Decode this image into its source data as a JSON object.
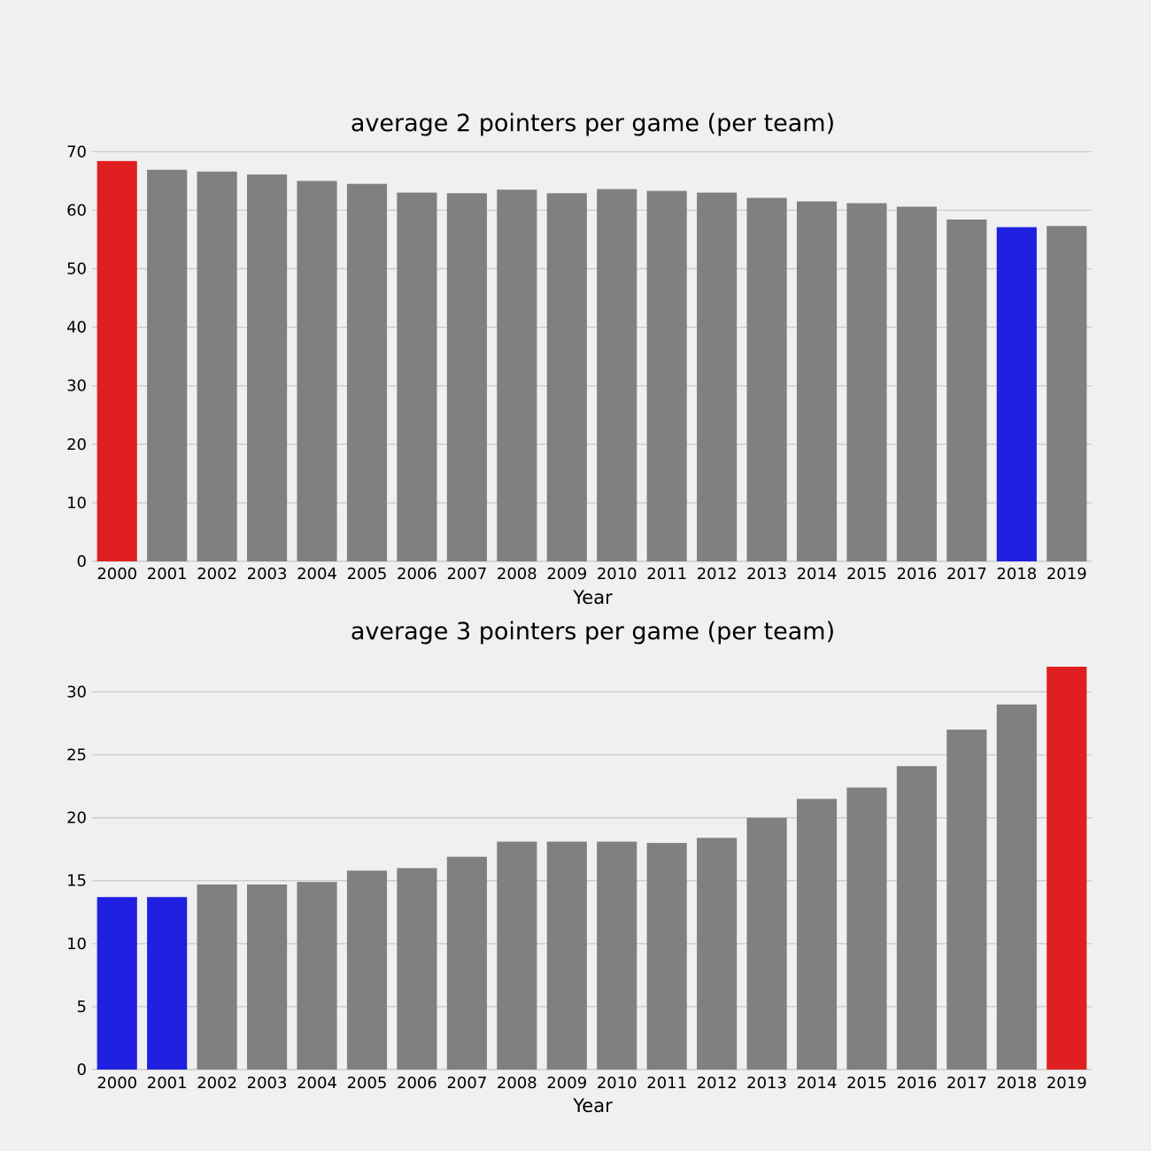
{
  "chart_data": [
    {
      "type": "bar",
      "title": "average 2 pointers per game (per team)",
      "xlabel": "Year",
      "ylabel": "",
      "categories": [
        "2000",
        "2001",
        "2002",
        "2003",
        "2004",
        "2005",
        "2006",
        "2007",
        "2008",
        "2009",
        "2010",
        "2011",
        "2012",
        "2013",
        "2014",
        "2015",
        "2016",
        "2017",
        "2018",
        "2019"
      ],
      "values": [
        68.4,
        66.9,
        66.6,
        66.1,
        65.0,
        64.5,
        63.0,
        62.9,
        63.5,
        62.9,
        63.6,
        63.3,
        63.0,
        62.1,
        61.5,
        61.2,
        60.6,
        58.4,
        57.1,
        57.3
      ],
      "colors": [
        "#e02020",
        "#808080",
        "#808080",
        "#808080",
        "#808080",
        "#808080",
        "#808080",
        "#808080",
        "#808080",
        "#808080",
        "#808080",
        "#808080",
        "#808080",
        "#808080",
        "#808080",
        "#808080",
        "#808080",
        "#808080",
        "#2020e0",
        "#808080"
      ],
      "yticks": [
        0,
        10,
        20,
        30,
        40,
        50,
        60,
        70
      ],
      "ylim": [
        0,
        70.5
      ],
      "grid": true
    },
    {
      "type": "bar",
      "title": "average 3 pointers per game (per team)",
      "xlabel": "Year",
      "ylabel": "",
      "categories": [
        "2000",
        "2001",
        "2002",
        "2003",
        "2004",
        "2005",
        "2006",
        "2007",
        "2008",
        "2009",
        "2010",
        "2011",
        "2012",
        "2013",
        "2014",
        "2015",
        "2016",
        "2017",
        "2018",
        "2019"
      ],
      "values": [
        13.7,
        13.7,
        14.7,
        14.7,
        14.9,
        15.8,
        16.0,
        16.9,
        18.1,
        18.1,
        18.1,
        18.0,
        18.4,
        20.0,
        21.5,
        22.4,
        24.1,
        27.0,
        29.0,
        32.0
      ],
      "colors": [
        "#2020e0",
        "#2020e0",
        "#808080",
        "#808080",
        "#808080",
        "#808080",
        "#808080",
        "#808080",
        "#808080",
        "#808080",
        "#808080",
        "#808080",
        "#808080",
        "#808080",
        "#808080",
        "#808080",
        "#808080",
        "#808080",
        "#808080",
        "#e02020"
      ],
      "yticks": [
        0,
        5,
        10,
        15,
        20,
        25,
        30
      ],
      "ylim": [
        0,
        32.0
      ],
      "grid": true
    }
  ]
}
